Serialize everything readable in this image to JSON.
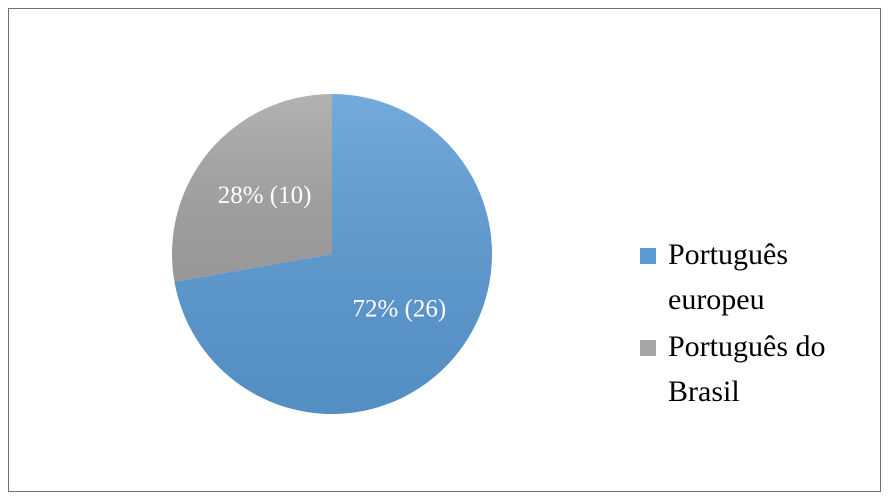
{
  "chart_data": {
    "type": "pie",
    "labels": [
      "Português europeu",
      "Português do Brasil"
    ],
    "values": [
      26,
      10
    ],
    "value_labels": [
      "72% (26)",
      "28% (10)"
    ],
    "colors": [
      "#5b9bd5",
      "#a5a5a5"
    ],
    "legend": "right"
  }
}
